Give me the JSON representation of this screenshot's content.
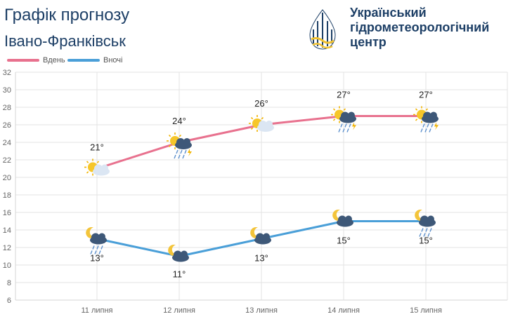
{
  "header": {
    "title": "Графік прогнозу",
    "city": "Івано-Франківськ",
    "org_line1": "Український",
    "org_line2": "гідрометеорологічний",
    "org_line3": "центр"
  },
  "colors": {
    "day": "#e8718e",
    "night": "#4a9fd8",
    "grid": "#e3e3e3",
    "brand": "#1d3f66",
    "logo_accent": "#f2c230"
  },
  "chart_data": {
    "type": "line",
    "categories": [
      "11 липня",
      "12 липня",
      "13 липня",
      "14 липня",
      "15 липня"
    ],
    "series": [
      {
        "name": "Вдень",
        "values": [
          21,
          24,
          26,
          27,
          27
        ],
        "labels": [
          "21°",
          "24°",
          "26°",
          "27°",
          "27°"
        ],
        "icons": [
          "sun-cloud-icon",
          "sun-cloud-rain-storm-icon",
          "sun-cloud-icon",
          "sun-cloud-rain-storm-icon",
          "sun-cloud-rain-storm-icon"
        ]
      },
      {
        "name": "Вночі",
        "values": [
          13,
          11,
          13,
          15,
          15
        ],
        "labels": [
          "13°",
          "11°",
          "13°",
          "15°",
          "15°"
        ],
        "icons": [
          "moon-cloud-rain-icon",
          "moon-cloud-icon",
          "moon-cloud-icon",
          "moon-cloud-icon",
          "moon-cloud-rain-icon"
        ]
      }
    ],
    "ylim": [
      6,
      32
    ],
    "yticks": [
      6,
      8,
      10,
      12,
      14,
      16,
      18,
      20,
      22,
      24,
      26,
      28,
      30,
      32
    ],
    "grid": true,
    "legend": "top-left"
  }
}
